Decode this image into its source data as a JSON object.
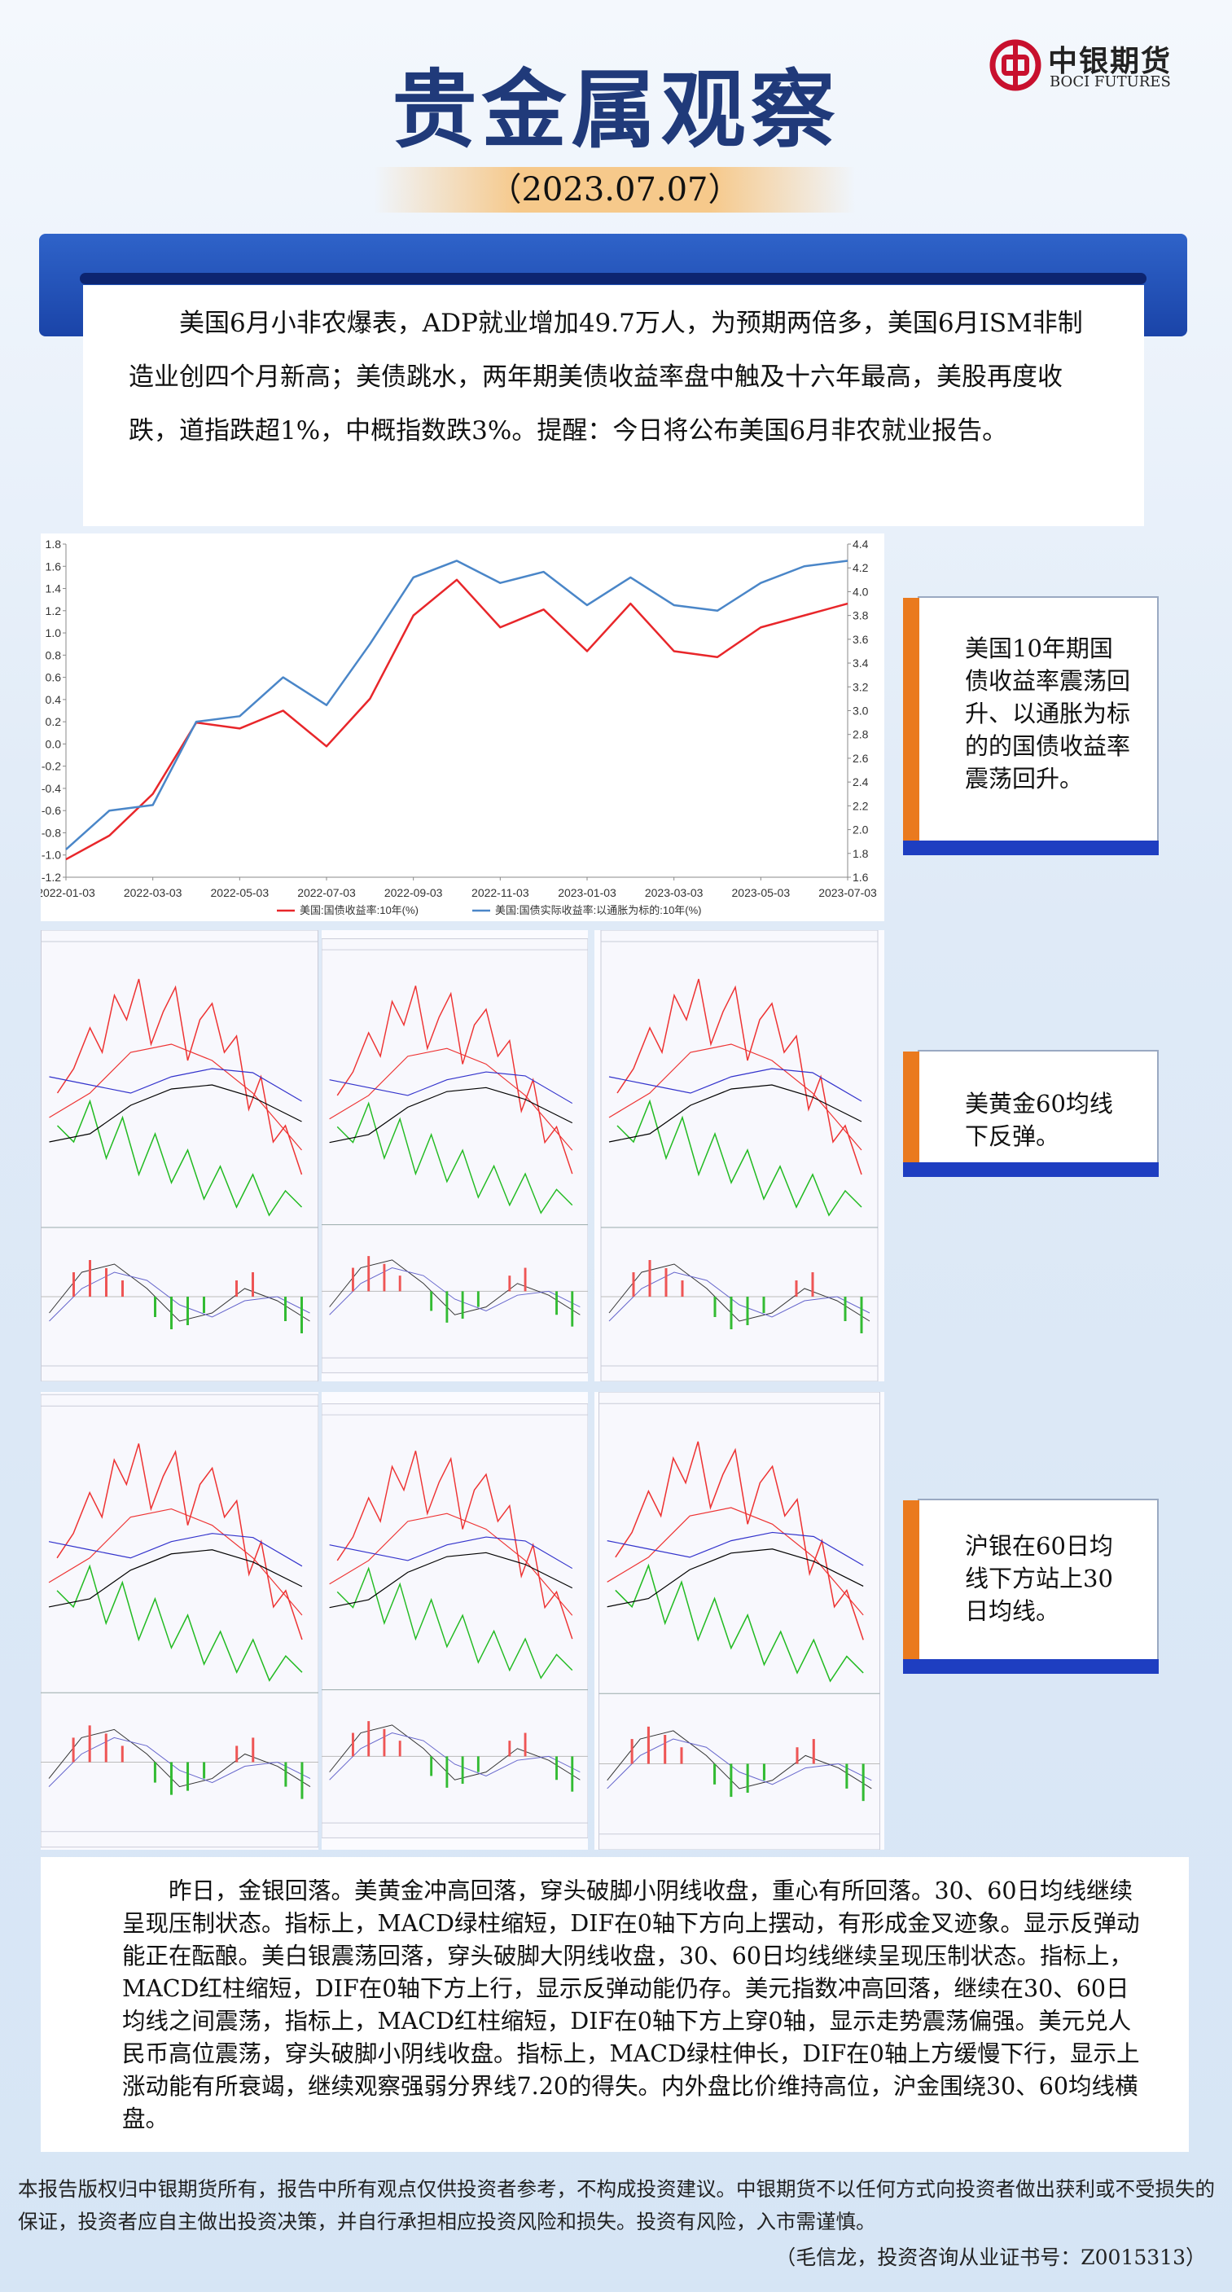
{
  "header": {
    "title": "贵金属观察",
    "date": "（2023.07.07）",
    "logo_cn": "中银期货",
    "logo_en": "BOCI FUTURES"
  },
  "summary": "美国6月小非农爆表，ADP就业增加49.7万人，为预期两倍多，美国6月ISM非制造业创四个月新高；美债跳水，两年期美债收益率盘中触及十六年最高，美股再度收跌，道指跌超1%，中概指数跌3%。提醒：今日将公布美国6月非农就业报告。",
  "chart_data": {
    "type": "line",
    "categories": [
      "2022-01-03",
      null,
      "2022-03-03",
      null,
      "2022-05-03",
      null,
      "2022-07-03",
      null,
      "2022-09-03",
      null,
      "2022-11-03",
      null,
      "2023-01-03",
      null,
      "2023-03-03",
      null,
      "2023-05-03",
      null,
      "2023-07-03"
    ],
    "series": [
      {
        "name": "美国:国债收益率:10年(%)",
        "color": "#e8262a",
        "axis": "y2",
        "values": [
          1.75,
          1.95,
          2.3,
          2.9,
          2.85,
          3.0,
          2.7,
          3.1,
          3.8,
          4.1,
          3.7,
          3.85,
          3.5,
          3.9,
          3.5,
          3.45,
          3.7,
          3.8,
          3.9
        ]
      },
      {
        "name": "美国:国债实际收益率:以通胀为标的:10年(%)",
        "color": "#4a86c8",
        "values": [
          -0.95,
          -0.6,
          -0.55,
          0.2,
          0.25,
          0.6,
          0.35,
          0.9,
          1.5,
          1.65,
          1.45,
          1.55,
          1.25,
          1.5,
          1.25,
          1.2,
          1.45,
          1.6,
          1.65
        ]
      }
    ],
    "ylim": [
      -1.2,
      1.8
    ],
    "yticks": [
      -1.2,
      {
        "value": -1,
        "label": "-1.0"
      },
      -0.8,
      -0.6,
      -0.4,
      -0.2,
      {
        "value": 0,
        "label": "0.0"
      },
      0.2,
      0.4,
      0.6,
      0.8,
      {
        "value": 1,
        "label": "1.0"
      },
      1.2,
      1.4,
      1.6,
      1.8
    ],
    "y2lim": [
      1.6,
      4.4
    ],
    "y2ticks": [
      1.6,
      1.8,
      {
        "value": 2,
        "label": "2.0"
      },
      2.2,
      2.4,
      2.6,
      2.8,
      {
        "value": 3,
        "label": "3.0"
      },
      3.2,
      3.4,
      3.6,
      3.8,
      {
        "value": 4,
        "label": "4.0"
      },
      4.2,
      4.4
    ],
    "legend": "bottom"
  },
  "callouts": [
    "美国10年期国债收益率震荡回升、以通胀为标的的国债收益率震荡回升。",
    "美黄金60均线下反弹。",
    "沪银在60日均线下方站上30日均线。"
  ],
  "analysis": "昨日，金银回落。美黄金冲高回落，穿头破脚小阴线收盘，重心有所回落。30、60日均线继续呈现压制状态。指标上，MACD绿柱缩短，DIF在0轴下方向上摆动，有形成金叉迹象。显示反弹动能正在酝酿。美白银震荡回落，穿头破脚大阴线收盘，30、60日均线继续呈现压制状态。指标上，MACD红柱缩短，DIF在0轴下方上行，显示反弹动能仍存。美元指数冲高回落，继续在30、60日均线之间震荡，指标上，MACD红柱缩短，DIF在0轴下方上穿0轴，显示走势震荡偏强。美元兑人民币高位震荡，穿头破脚小阴线收盘。指标上，MACD绿柱伸长，DIF在0轴上方缓慢下行，显示上涨动能有所衰竭，继续观察强弱分界线7.20的得失。内外盘比价维持高位，沪金围绕30、60均线横盘。",
  "footer": {
    "disclaimer": "本报告版权归中银期货所有，报告中所有观点仅供投资者参考，不构成投资建议。中银期货不以任何方式向投资者做出获利或不受损失的保证，投资者应自主做出投资决策，并自行承担相应投资风险和损失。投资有风险，入市需谨慎。",
    "author": "（毛信龙，投资咨询从业证书号：Z0015313）"
  }
}
